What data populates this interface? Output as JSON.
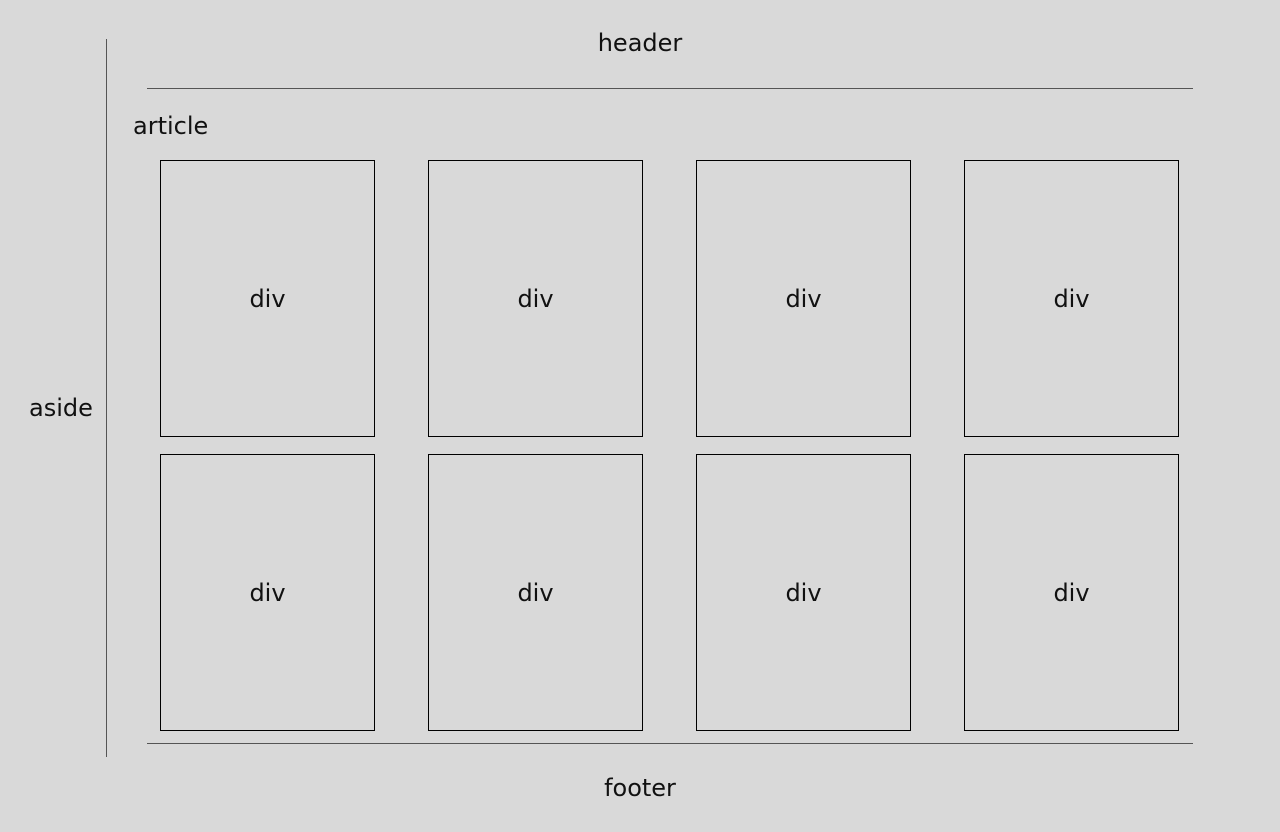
{
  "header": {
    "label": "header"
  },
  "aside": {
    "label": "aside"
  },
  "article": {
    "label": "article",
    "boxes": [
      {
        "label": "div"
      },
      {
        "label": "div"
      },
      {
        "label": "div"
      },
      {
        "label": "div"
      },
      {
        "label": "div"
      },
      {
        "label": "div"
      },
      {
        "label": "div"
      },
      {
        "label": "div"
      }
    ]
  },
  "footer": {
    "label": "footer"
  }
}
